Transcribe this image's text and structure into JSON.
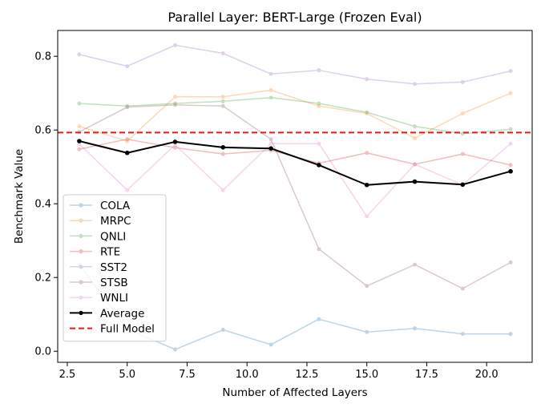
{
  "chart_data": {
    "type": "line",
    "title": "Parallel Layer: BERT-Large (Frozen Eval)",
    "xlabel": "Number of Affected Layers",
    "ylabel": "Benchmark Value",
    "xlim": [
      2.1,
      21.9
    ],
    "ylim": [
      -0.03,
      0.87
    ],
    "xticks": [
      2.5,
      5.0,
      7.5,
      10.0,
      12.5,
      15.0,
      17.5,
      20.0
    ],
    "xtick_labels": [
      "2.5",
      "5.0",
      "7.5",
      "10.0",
      "12.5",
      "15.0",
      "17.5",
      "20.0"
    ],
    "yticks": [
      0.0,
      0.2,
      0.4,
      0.6,
      0.8
    ],
    "ytick_labels": [
      "0.0",
      "0.2",
      "0.4",
      "0.6",
      "0.8"
    ],
    "grid": false,
    "legend_position": "lower-left",
    "x": [
      3,
      5,
      7,
      9,
      11,
      13,
      15,
      17,
      19,
      21
    ],
    "series": [
      {
        "name": "COLA",
        "color": "#1f77b4",
        "alpha": 0.3,
        "values": [
          0.235,
          0.06,
          0.005,
          0.058,
          0.018,
          0.087,
          0.052,
          0.062,
          0.047,
          0.047
        ]
      },
      {
        "name": "MRPC",
        "color": "#ff7f0e",
        "alpha": 0.3,
        "values": [
          0.61,
          0.57,
          0.69,
          0.69,
          0.708,
          0.665,
          0.645,
          0.578,
          0.645,
          0.7
        ]
      },
      {
        "name": "QNLI",
        "color": "#2ca02c",
        "alpha": 0.3,
        "values": [
          0.672,
          0.665,
          0.672,
          0.678,
          0.688,
          0.672,
          0.648,
          0.61,
          0.59,
          0.602
        ]
      },
      {
        "name": "RTE",
        "color": "#d62728",
        "alpha": 0.3,
        "values": [
          0.548,
          0.575,
          0.552,
          0.535,
          0.545,
          0.51,
          0.538,
          0.507,
          0.535,
          0.505
        ]
      },
      {
        "name": "SST2",
        "color": "#9467bd",
        "alpha": 0.3,
        "values": [
          0.805,
          0.773,
          0.83,
          0.808,
          0.752,
          0.762,
          0.738,
          0.725,
          0.73,
          0.76
        ]
      },
      {
        "name": "STSB",
        "color": "#8c564b",
        "alpha": 0.3,
        "values": [
          0.595,
          0.662,
          0.668,
          0.665,
          0.575,
          0.277,
          0.177,
          0.235,
          0.17,
          0.241
        ]
      },
      {
        "name": "WNLI",
        "color": "#e377c2",
        "alpha": 0.3,
        "values": [
          0.562,
          0.437,
          0.56,
          0.437,
          0.563,
          0.563,
          0.366,
          0.507,
          0.451,
          0.563
        ]
      },
      {
        "name": "Average",
        "color": "#000000",
        "alpha": 1.0,
        "values": [
          0.57,
          0.538,
          0.568,
          0.553,
          0.55,
          0.505,
          0.451,
          0.46,
          0.452,
          0.488
        ]
      }
    ],
    "reference_line": {
      "name": "Full Model",
      "value": 0.593,
      "color": "#e31a1c",
      "style": "dashed"
    }
  }
}
